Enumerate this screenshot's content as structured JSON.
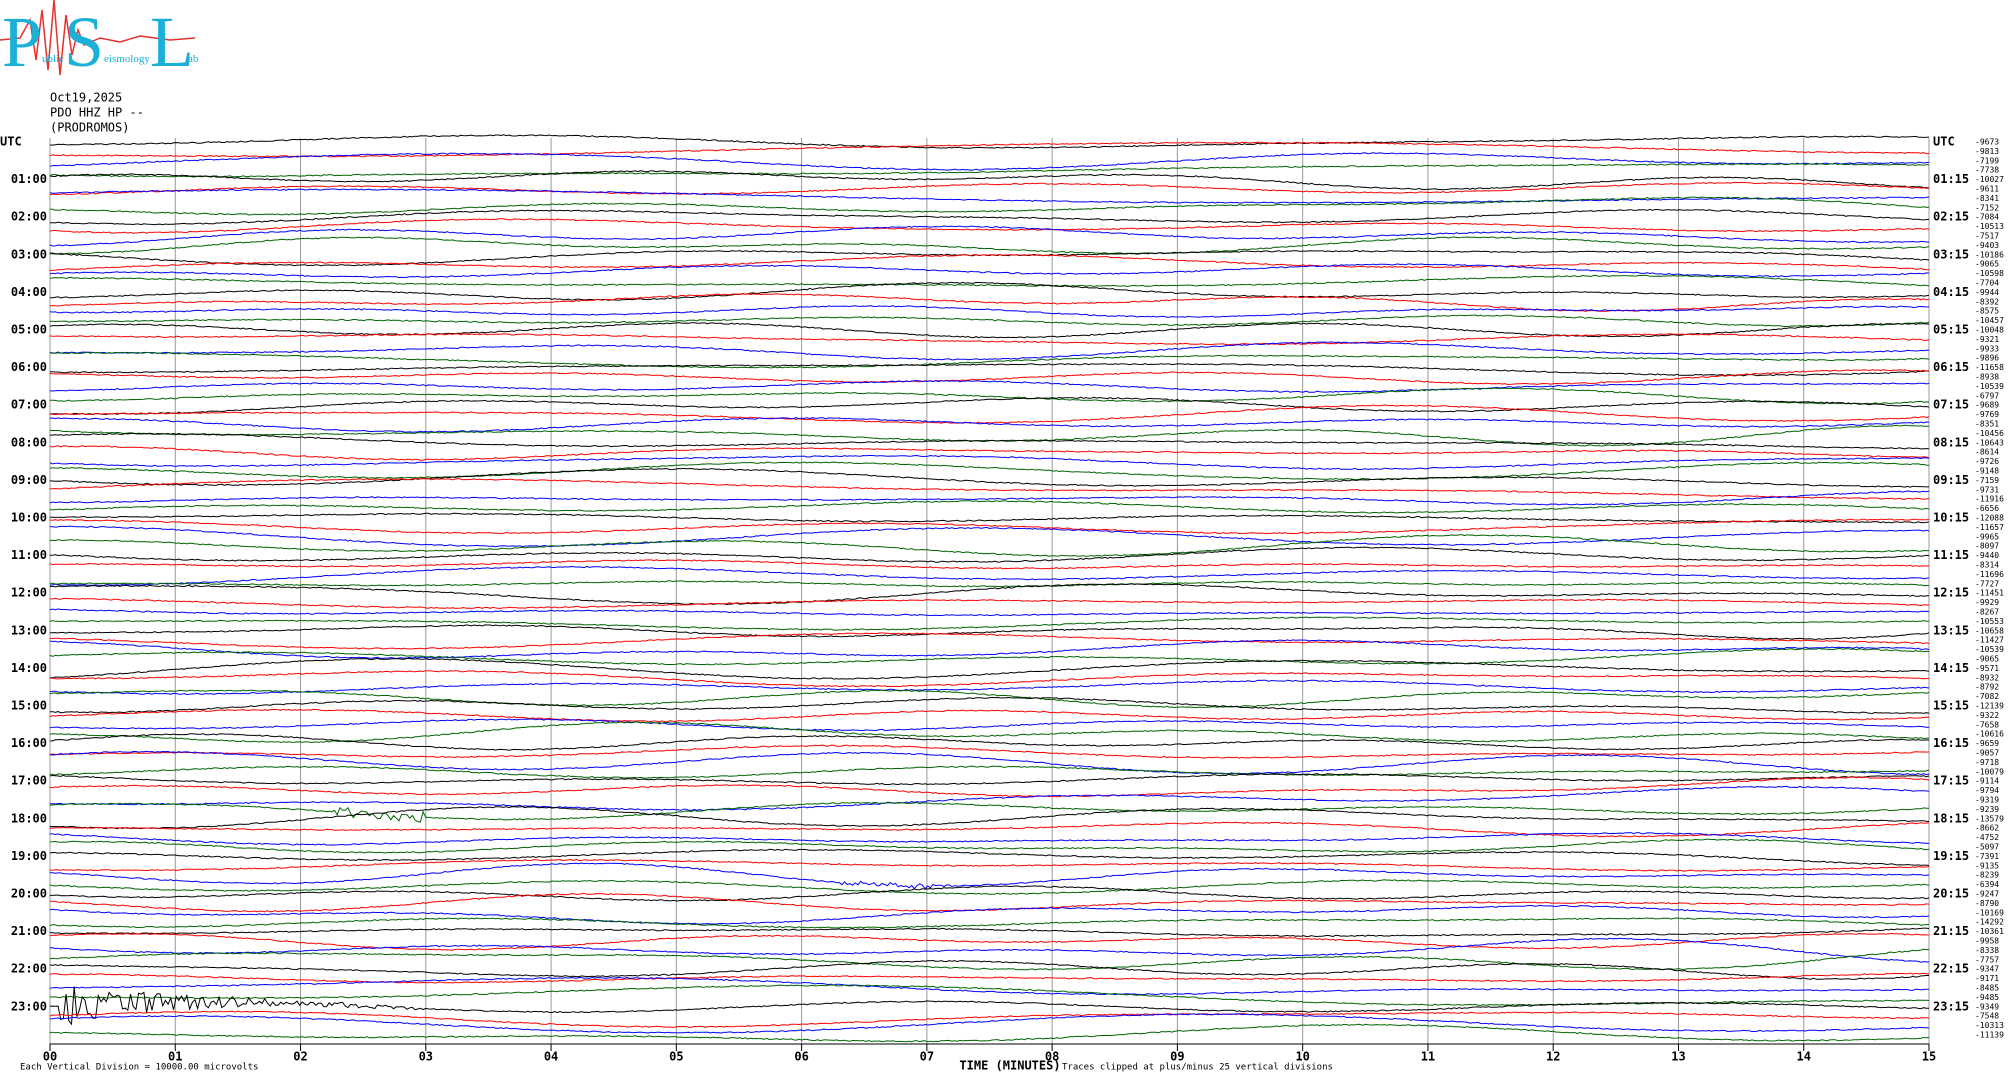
{
  "logo": {
    "letters": [
      "P",
      "S",
      "L"
    ],
    "words": [
      "ublic",
      "eismology",
      "ab"
    ]
  },
  "chart_data": {
    "type": "helicorder",
    "date": "Oct19,2025",
    "station": "PDO HHZ HP --",
    "site": "(PRODROMOS)",
    "left_labels": [
      "UTC",
      "01:00",
      "02:00",
      "03:00",
      "04:00",
      "05:00",
      "06:00",
      "07:00",
      "08:00",
      "09:00",
      "10:00",
      "11:00",
      "12:00",
      "13:00",
      "14:00",
      "15:00",
      "16:00",
      "17:00",
      "18:00",
      "19:00",
      "20:00",
      "21:00",
      "22:00",
      "23:00"
    ],
    "right_labels": [
      "UTC",
      "01:15",
      "02:15",
      "03:15",
      "04:15",
      "05:15",
      "06:15",
      "07:15",
      "08:15",
      "09:15",
      "10:15",
      "11:15",
      "12:15",
      "13:15",
      "14:15",
      "15:15",
      "16:15",
      "17:15",
      "18:15",
      "19:15",
      "20:15",
      "21:15",
      "22:15",
      "23:15"
    ],
    "trace_labels": [
      -9673,
      -9813,
      -7199,
      -7738,
      -10027,
      -9611,
      -8341,
      -7152,
      -7084,
      -10513,
      -7517,
      -9403,
      -10186,
      -9065,
      -10598,
      -7704,
      -9944,
      -8392,
      -8575,
      -10457,
      -10048,
      -9321,
      -9933,
      -9896,
      -11658,
      -8938,
      -10539,
      -6797,
      -9689,
      -9769,
      -8351,
      -10456,
      -10643,
      -8614,
      -9726,
      -9148,
      -7159,
      -9731,
      -11916,
      -6656,
      -12088,
      -11657,
      -9965,
      -8097,
      -9440,
      -8314,
      -11696,
      -7727,
      -11451,
      -9929,
      -8267,
      -10553,
      -10658,
      -11427,
      -10539,
      -9065,
      -9571,
      -8932,
      -8792,
      -7082,
      -12139,
      -9322,
      -7658,
      -10616,
      -9659,
      -9057,
      -9718,
      -10079,
      -9114,
      -9794,
      -9319,
      -9239,
      -13579,
      -8662,
      -4752,
      -5097,
      -7391,
      -9135,
      -8239,
      -6394,
      -9247,
      -8790,
      -10169,
      -14292,
      -10361,
      -9958,
      -8338,
      -7757,
      -9347,
      -9171,
      -8485,
      -9485,
      -9349,
      -7548,
      -10313,
      -11139
    ],
    "colors": [
      "#000000",
      "#ff0000",
      "#0000ff",
      "#006400"
    ],
    "xlabel": "TIME (MINUTES)",
    "xlim": [
      0,
      15
    ],
    "xticks": [
      {
        "value": 0,
        "label": "00"
      },
      {
        "value": 1,
        "label": "01"
      },
      {
        "value": 2,
        "label": "02"
      },
      {
        "value": 3,
        "label": "03"
      },
      {
        "value": 4,
        "label": "04"
      },
      {
        "value": 5,
        "label": "05"
      },
      {
        "value": 6,
        "label": "06"
      },
      {
        "value": 7,
        "label": "07"
      },
      {
        "value": 8,
        "label": "08"
      },
      {
        "value": 9,
        "label": "09"
      },
      {
        "value": 10,
        "label": "10"
      },
      {
        "value": 11,
        "label": "11"
      },
      {
        "value": 12,
        "label": "12"
      },
      {
        "value": 13,
        "label": "13"
      },
      {
        "value": 14,
        "label": "14"
      },
      {
        "value": 15,
        "label": "15"
      }
    ],
    "footer_left": "Each Vertical Division = 10000.00 microvolts",
    "footer_right": "Traces clipped at plus/minus 25 vertical divisions",
    "grid": true
  }
}
